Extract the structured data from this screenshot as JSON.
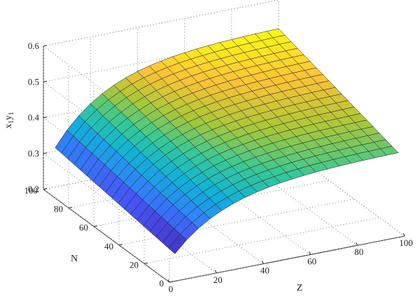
{
  "chart_data": {
    "type": "surface",
    "title": "",
    "xlabel": "Z",
    "ylabel": "N",
    "zlabel_main": "x",
    "zlabel_sub1": "1",
    "zlabel_y": "y",
    "zlabel_sub2": "1",
    "xlim": [
      0,
      100
    ],
    "ylim": [
      0,
      100
    ],
    "zlim": [
      0.2,
      0.6
    ],
    "x_ticks": [
      "0",
      "20",
      "40",
      "60",
      "80",
      "100"
    ],
    "y_ticks": [
      "0",
      "20",
      "40",
      "60",
      "80",
      "100"
    ],
    "z_ticks": [
      "0.2",
      "0.3",
      "0.4",
      "0.5",
      "0.6"
    ],
    "x_range_mesh": [
      5,
      100
    ],
    "y_range_mesh": [
      5,
      100
    ],
    "mesh_steps": 19,
    "corner_values": {
      "z5_n5": 0.26,
      "z5_n100": 0.31,
      "z100_n5": 0.42,
      "z100_n100": 0.52
    },
    "grid": true,
    "colormap": "parula"
  }
}
